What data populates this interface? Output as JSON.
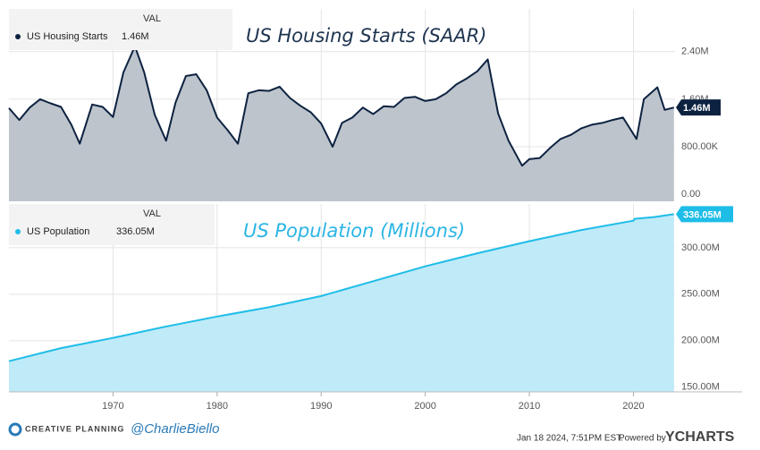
{
  "chart_data": [
    {
      "type": "area",
      "annotation": "US Housing Starts (SAAR)",
      "legend_header": "VAL",
      "series": [
        {
          "name": "US Housing Starts",
          "color": "#0d2240",
          "fill": "#bec4cc",
          "last_label": "1.46M",
          "x": [
            1960,
            1961,
            1962,
            1963,
            1964,
            1965,
            1966,
            1966.8,
            1968,
            1969,
            1970,
            1971,
            1972.1,
            1973,
            1974,
            1975.1,
            1976,
            1977,
            1978,
            1979,
            1980,
            1981,
            1982,
            1983,
            1984,
            1985,
            1986,
            1987,
            1988,
            1989,
            1990,
            1991.1,
            1992,
            1993,
            1994,
            1995,
            1996,
            1997,
            1998,
            1999,
            2000,
            2001,
            2002,
            2003,
            2004,
            2005,
            2006,
            2007,
            2008,
            2009.3,
            2010,
            2011,
            2012,
            2013,
            2014,
            2015,
            2016,
            2017,
            2018,
            2019,
            2020.3,
            2021,
            2022.3,
            2023,
            2023.9
          ],
          "values": [
            1450000,
            1250000,
            1460000,
            1600000,
            1530000,
            1470000,
            1170000,
            850000,
            1510000,
            1470000,
            1300000,
            2050000,
            2490000,
            2050000,
            1340000,
            900000,
            1540000,
            1990000,
            2020000,
            1750000,
            1290000,
            1080000,
            850000,
            1700000,
            1750000,
            1740000,
            1810000,
            1620000,
            1490000,
            1380000,
            1190000,
            800000,
            1200000,
            1290000,
            1460000,
            1350000,
            1480000,
            1470000,
            1620000,
            1640000,
            1570000,
            1600000,
            1700000,
            1850000,
            1950000,
            2070000,
            2270000,
            1360000,
            900000,
            480000,
            590000,
            610000,
            780000,
            930000,
            1000000,
            1110000,
            1170000,
            1200000,
            1250000,
            1290000,
            930000,
            1600000,
            1800000,
            1420000,
            1460000
          ]
        }
      ],
      "xlim": [
        1960,
        2024
      ],
      "xticks": [
        1970,
        1980,
        1990,
        2000,
        2010,
        2020
      ],
      "ylim": [
        -120000,
        3120000
      ],
      "yticks": [
        {
          "value": 0,
          "label": "0.00"
        },
        {
          "value": 800000,
          "label": "800.00K"
        },
        {
          "value": 1600000,
          "label": "1.60M"
        },
        {
          "value": 2400000,
          "label": "2.40M"
        }
      ],
      "grid": true
    },
    {
      "type": "area",
      "annotation": "US Population (Millions)",
      "legend_header": "VAL",
      "series": [
        {
          "name": "US Population",
          "color": "#1ebde8",
          "fill": "#bfeaf8",
          "last_label": "336.05M",
          "x": [
            1960,
            1965,
            1970,
            1975,
            1980,
            1985,
            1990,
            1995,
            2000,
            2005,
            2010,
            2015,
            2020,
            2020.1,
            2022,
            2023.9
          ],
          "values": [
            178000000,
            192000000,
            203000000,
            215000000,
            226000000,
            236000000,
            248000000,
            264000000,
            280000000,
            294000000,
            307000000,
            319000000,
            329000000,
            331000000,
            333000000,
            336050000
          ]
        }
      ],
      "xlim": [
        1960,
        2024
      ],
      "xticks": [
        1970,
        1980,
        1990,
        2000,
        2010,
        2020
      ],
      "ylim": [
        145000000,
        347000000
      ],
      "yticks": [
        {
          "value": 150000000,
          "label": "150.00M"
        },
        {
          "value": 200000000,
          "label": "200.00M"
        },
        {
          "value": 250000000,
          "label": "250.00M"
        },
        {
          "value": 300000000,
          "label": "300.00M"
        }
      ],
      "grid": true
    }
  ],
  "footer": {
    "brand": "CREATIVE PLANNING",
    "handle": "@CharlieBiello",
    "timestamp": "Jan 18 2024, 7:51PM EST.",
    "powered": "Powered by",
    "logo": "YCHARTS"
  }
}
